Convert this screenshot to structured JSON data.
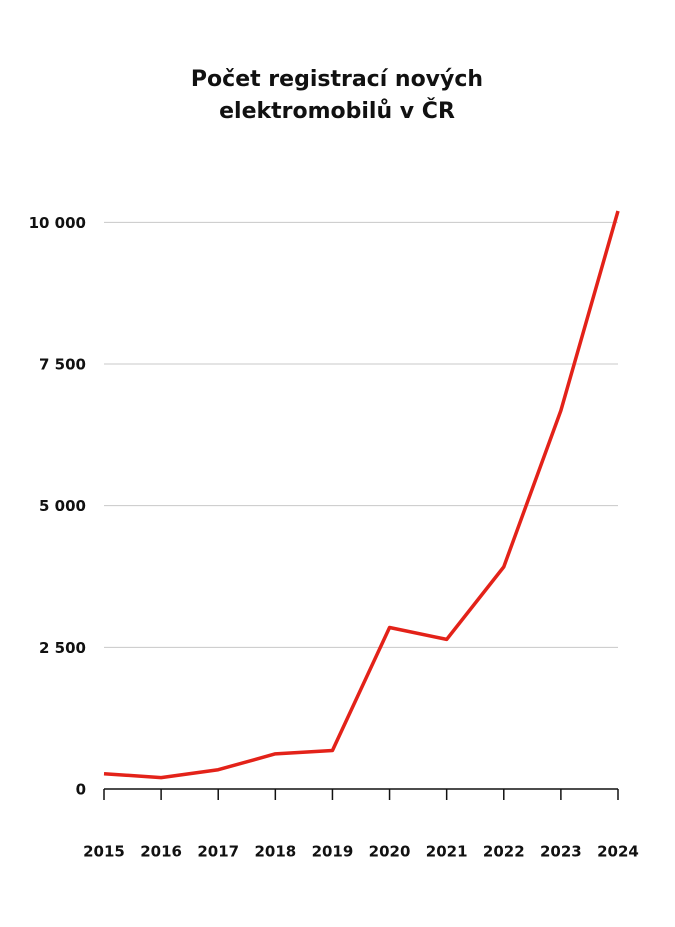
{
  "chart_data": {
    "type": "line",
    "title": "Počet registrací nových elektromobilů v ČR",
    "categories": [
      "2015",
      "2016",
      "2017",
      "2018",
      "2019",
      "2020",
      "2021",
      "2022",
      "2023",
      "2024"
    ],
    "values": [
      270,
      200,
      340,
      620,
      680,
      2850,
      2640,
      3920,
      6680,
      10200
    ],
    "color": "#e32219",
    "ylim": [
      0,
      10200
    ],
    "yticks": [
      0,
      {
        "value": 2500,
        "label": "2 500"
      },
      {
        "value": 5000,
        "label": "5 000"
      },
      {
        "value": 7500,
        "label": "7 500"
      },
      {
        "value": 10000,
        "label": "10 000"
      }
    ],
    "grid": true
  }
}
